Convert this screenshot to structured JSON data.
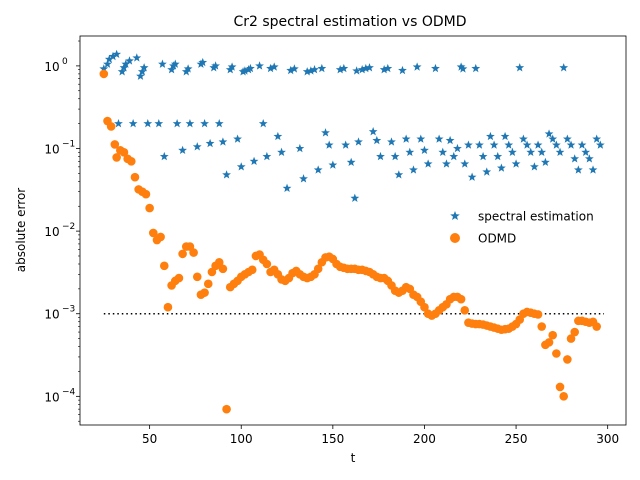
{
  "chart_data": {
    "type": "scatter",
    "title": "Cr2 spectral estimation vs ODMD",
    "xlabel": "t",
    "ylabel": "absolute error",
    "xlim": [
      12,
      310
    ],
    "ylim": [
      4.5e-05,
      2.3
    ],
    "yscale": "log",
    "xticks": [
      50,
      100,
      150,
      200,
      250,
      300
    ],
    "yticks": [
      {
        "value": 0.0001,
        "label": "10",
        "exp": "−4"
      },
      {
        "value": 0.001,
        "label": "10",
        "exp": "−3"
      },
      {
        "value": 0.01,
        "label": "10",
        "exp": "−2"
      },
      {
        "value": 0.1,
        "label": "10",
        "exp": "−1"
      },
      {
        "value": 1,
        "label": "10",
        "exp": "0"
      }
    ],
    "grid": false,
    "legend_position": "center-right",
    "reference_line": {
      "y": 0.001,
      "x": [
        25,
        298
      ],
      "style": "dotted",
      "color": "#000000"
    },
    "series": [
      {
        "name": "spectral estimation",
        "marker": "star",
        "color": "#1f77b4",
        "points": [
          [
            25,
            0.92
          ],
          [
            27,
            1.05
          ],
          [
            28,
            1.2
          ],
          [
            30,
            1.3
          ],
          [
            32,
            1.38
          ],
          [
            33,
            0.2
          ],
          [
            35,
            0.85
          ],
          [
            36,
            0.95
          ],
          [
            37,
            1.05
          ],
          [
            39,
            1.15
          ],
          [
            41,
            0.2
          ],
          [
            43,
            1.25
          ],
          [
            45,
            0.75
          ],
          [
            46,
            0.85
          ],
          [
            47,
            0.95
          ],
          [
            49,
            0.2
          ],
          [
            55,
            0.2
          ],
          [
            57,
            1.05
          ],
          [
            58,
            0.08
          ],
          [
            62,
            0.9
          ],
          [
            63,
            1.0
          ],
          [
            64,
            1.05
          ],
          [
            65,
            0.2
          ],
          [
            68,
            0.095
          ],
          [
            70,
            0.85
          ],
          [
            71,
            0.92
          ],
          [
            72,
            0.2
          ],
          [
            76,
            0.105
          ],
          [
            78,
            1.05
          ],
          [
            79,
            1.1
          ],
          [
            80,
            0.2
          ],
          [
            83,
            0.115
          ],
          [
            85,
            0.95
          ],
          [
            86,
            1.0
          ],
          [
            88,
            0.2
          ],
          [
            90,
            0.12
          ],
          [
            92,
            0.048
          ],
          [
            94,
            0.9
          ],
          [
            95,
            0.97
          ],
          [
            98,
            0.13
          ],
          [
            100,
            0.06
          ],
          [
            101,
            0.85
          ],
          [
            102,
            0.87
          ],
          [
            104,
            0.9
          ],
          [
            105,
            0.93
          ],
          [
            107,
            0.07
          ],
          [
            110,
            1.0
          ],
          [
            112,
            0.2
          ],
          [
            114,
            0.08
          ],
          [
            116,
            0.93
          ],
          [
            118,
            0.97
          ],
          [
            120,
            0.14
          ],
          [
            122,
            0.09
          ],
          [
            125,
            0.033
          ],
          [
            127,
            0.88
          ],
          [
            129,
            0.92
          ],
          [
            132,
            0.1
          ],
          [
            134,
            0.043
          ],
          [
            136,
            0.85
          ],
          [
            138,
            0.87
          ],
          [
            140,
            0.9
          ],
          [
            142,
            0.055
          ],
          [
            144,
            0.93
          ],
          [
            146,
            0.155
          ],
          [
            148,
            0.11
          ],
          [
            150,
            0.063
          ],
          [
            154,
            0.9
          ],
          [
            156,
            0.93
          ],
          [
            157,
            0.11
          ],
          [
            160,
            0.068
          ],
          [
            162,
            0.025
          ],
          [
            163,
            0.87
          ],
          [
            164,
            0.12
          ],
          [
            166,
            0.9
          ],
          [
            168,
            0.93
          ],
          [
            170,
            0.95
          ],
          [
            172,
            0.16
          ],
          [
            174,
            0.125
          ],
          [
            176,
            0.08
          ],
          [
            178,
            0.9
          ],
          [
            180,
            0.93
          ],
          [
            182,
            0.12
          ],
          [
            184,
            0.08
          ],
          [
            186,
            0.048
          ],
          [
            188,
            0.88
          ],
          [
            190,
            0.13
          ],
          [
            192,
            0.09
          ],
          [
            194,
            0.055
          ],
          [
            196,
            0.97
          ],
          [
            198,
            0.13
          ],
          [
            200,
            0.095
          ],
          [
            202,
            0.065
          ],
          [
            206,
            0.93
          ],
          [
            208,
            0.13
          ],
          [
            210,
            0.09
          ],
          [
            212,
            0.065
          ],
          [
            214,
            0.125
          ],
          [
            216,
            0.08
          ],
          [
            218,
            0.1
          ],
          [
            220,
            0.97
          ],
          [
            221,
            0.92
          ],
          [
            222,
            0.065
          ],
          [
            224,
            0.11
          ],
          [
            226,
            0.045
          ],
          [
            228,
            0.93
          ],
          [
            230,
            0.11
          ],
          [
            232,
            0.08
          ],
          [
            234,
            0.052
          ],
          [
            236,
            0.14
          ],
          [
            238,
            0.11
          ],
          [
            240,
            0.08
          ],
          [
            242,
            0.058
          ],
          [
            244,
            0.14
          ],
          [
            246,
            0.11
          ],
          [
            248,
            0.09
          ],
          [
            250,
            0.065
          ],
          [
            252,
            0.95
          ],
          [
            254,
            0.13
          ],
          [
            256,
            0.11
          ],
          [
            258,
            0.09
          ],
          [
            260,
            0.06
          ],
          [
            262,
            0.11
          ],
          [
            264,
            0.09
          ],
          [
            266,
            0.068
          ],
          [
            268,
            0.15
          ],
          [
            270,
            0.13
          ],
          [
            272,
            0.11
          ],
          [
            274,
            0.09
          ],
          [
            276,
            0.95
          ],
          [
            278,
            0.13
          ],
          [
            280,
            0.11
          ],
          [
            282,
            0.075
          ],
          [
            284,
            0.055
          ],
          [
            286,
            0.11
          ],
          [
            288,
            0.09
          ],
          [
            290,
            0.075
          ],
          [
            292,
            0.055
          ],
          [
            294,
            0.13
          ],
          [
            296,
            0.11
          ]
        ]
      },
      {
        "name": "ODMD",
        "marker": "circle",
        "color": "#ff7f0e",
        "points": [
          [
            25,
            0.8
          ],
          [
            27,
            0.215
          ],
          [
            29,
            0.185
          ],
          [
            31,
            0.112
          ],
          [
            32,
            0.078
          ],
          [
            34,
            0.095
          ],
          [
            36,
            0.09
          ],
          [
            38,
            0.075
          ],
          [
            40,
            0.07
          ],
          [
            42,
            0.045
          ],
          [
            44,
            0.032
          ],
          [
            46,
            0.03
          ],
          [
            48,
            0.028
          ],
          [
            50,
            0.019
          ],
          [
            52,
            0.0095
          ],
          [
            54,
            0.0078
          ],
          [
            56,
            0.0085
          ],
          [
            58,
            0.0038
          ],
          [
            60,
            0.0012
          ],
          [
            62,
            0.0022
          ],
          [
            64,
            0.0025
          ],
          [
            66,
            0.0027
          ],
          [
            68,
            0.0053
          ],
          [
            70,
            0.0065
          ],
          [
            72,
            0.0065
          ],
          [
            74,
            0.0055
          ],
          [
            76,
            0.0028
          ],
          [
            78,
            0.0017
          ],
          [
            80,
            0.0018
          ],
          [
            82,
            0.0023
          ],
          [
            84,
            0.0032
          ],
          [
            86,
            0.0038
          ],
          [
            88,
            0.0042
          ],
          [
            90,
            0.0035
          ],
          [
            92,
            7e-05
          ],
          [
            94,
            0.0021
          ],
          [
            96,
            0.0023
          ],
          [
            98,
            0.0025
          ],
          [
            100,
            0.0028
          ],
          [
            102,
            0.003
          ],
          [
            104,
            0.0032
          ],
          [
            106,
            0.0034
          ],
          [
            108,
            0.005
          ],
          [
            110,
            0.0052
          ],
          [
            112,
            0.0045
          ],
          [
            114,
            0.004
          ],
          [
            116,
            0.0032
          ],
          [
            118,
            0.0034
          ],
          [
            120,
            0.003
          ],
          [
            122,
            0.0026
          ],
          [
            124,
            0.0025
          ],
          [
            126,
            0.0027
          ],
          [
            128,
            0.0031
          ],
          [
            130,
            0.0033
          ],
          [
            132,
            0.003
          ],
          [
            134,
            0.0028
          ],
          [
            136,
            0.0027
          ],
          [
            138,
            0.0028
          ],
          [
            140,
            0.003
          ],
          [
            142,
            0.0035
          ],
          [
            144,
            0.0042
          ],
          [
            146,
            0.0048
          ],
          [
            148,
            0.0049
          ],
          [
            150,
            0.0046
          ],
          [
            152,
            0.004
          ],
          [
            154,
            0.0037
          ],
          [
            156,
            0.0036
          ],
          [
            158,
            0.0035
          ],
          [
            160,
            0.0035
          ],
          [
            162,
            0.0035
          ],
          [
            164,
            0.0034
          ],
          [
            166,
            0.0034
          ],
          [
            168,
            0.0033
          ],
          [
            170,
            0.0032
          ],
          [
            172,
            0.003
          ],
          [
            174,
            0.0028
          ],
          [
            176,
            0.0027
          ],
          [
            178,
            0.0027
          ],
          [
            180,
            0.0025
          ],
          [
            182,
            0.0022
          ],
          [
            184,
            0.0019
          ],
          [
            186,
            0.0018
          ],
          [
            188,
            0.0019
          ],
          [
            190,
            0.0021
          ],
          [
            192,
            0.002
          ],
          [
            194,
            0.0017
          ],
          [
            196,
            0.0016
          ],
          [
            198,
            0.0014
          ],
          [
            200,
            0.0012
          ],
          [
            202,
            0.001
          ],
          [
            204,
            0.00095
          ],
          [
            206,
            0.001
          ],
          [
            208,
            0.0011
          ],
          [
            210,
            0.0012
          ],
          [
            212,
            0.0013
          ],
          [
            214,
            0.0015
          ],
          [
            216,
            0.0016
          ],
          [
            218,
            0.0016
          ],
          [
            220,
            0.0015
          ],
          [
            222,
            0.0011
          ],
          [
            224,
            0.00078
          ],
          [
            226,
            0.00076
          ],
          [
            228,
            0.00075
          ],
          [
            230,
            0.00075
          ],
          [
            232,
            0.00074
          ],
          [
            234,
            0.00072
          ],
          [
            236,
            0.0007
          ],
          [
            238,
            0.00068
          ],
          [
            240,
            0.00066
          ],
          [
            242,
            0.00064
          ],
          [
            244,
            0.00065
          ],
          [
            246,
            0.00066
          ],
          [
            248,
            0.0007
          ],
          [
            250,
            0.00075
          ],
          [
            252,
            0.00085
          ],
          [
            254,
            0.001
          ],
          [
            256,
            0.00105
          ],
          [
            258,
            0.00103
          ],
          [
            260,
            0.001
          ],
          [
            262,
            0.00098
          ],
          [
            264,
            0.0007
          ],
          [
            266,
            0.00042
          ],
          [
            268,
            0.00045
          ],
          [
            270,
            0.00055
          ],
          [
            272,
            0.00033
          ],
          [
            274,
            0.00013
          ],
          [
            276,
            0.0001
          ],
          [
            278,
            0.00028
          ],
          [
            280,
            0.0005
          ],
          [
            282,
            0.0006
          ],
          [
            284,
            0.00082
          ],
          [
            286,
            0.00082
          ],
          [
            288,
            0.0008
          ],
          [
            290,
            0.00078
          ],
          [
            292,
            0.0008
          ],
          [
            294,
            0.0007
          ]
        ]
      }
    ]
  }
}
